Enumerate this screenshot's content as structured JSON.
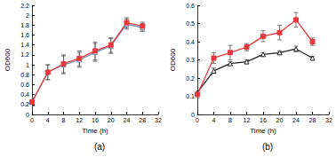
{
  "chart_data": [
    {
      "type": "line",
      "title": "(a)",
      "xlabel": "Time (h)",
      "ylabel": "OD600",
      "x": [
        0,
        4,
        8,
        12,
        16,
        20,
        24,
        28
      ],
      "xlim": [
        0,
        32
      ],
      "xticks": [
        0,
        4,
        8,
        12,
        16,
        20,
        24,
        28,
        32
      ],
      "ylim": [
        0,
        2.2
      ],
      "yticks": [
        0,
        0.2,
        0.4,
        0.6,
        0.8,
        1,
        1.2,
        1.4,
        1.6,
        1.8,
        2,
        2.2
      ],
      "grid": false,
      "series": [
        {
          "color": "#6f8fb8",
          "marker": "triangle",
          "values": [
            0.25,
            0.85,
            1.0,
            1.1,
            1.25,
            1.38,
            1.82,
            1.75
          ],
          "errors": [
            0.08,
            0.15,
            0.18,
            0.15,
            0.18,
            0.15,
            0.1,
            0.08
          ]
        },
        {
          "color": "#e8383d",
          "marker": "square",
          "values": [
            0.25,
            0.85,
            1.02,
            1.13,
            1.28,
            1.4,
            1.85,
            1.78
          ],
          "errors": [
            0.08,
            0.15,
            0.18,
            0.15,
            0.18,
            0.15,
            0.1,
            0.08
          ]
        }
      ]
    },
    {
      "type": "line",
      "title": "(b)",
      "xlabel": "Time (h)",
      "ylabel": "OD600",
      "x": [
        0,
        4,
        8,
        12,
        16,
        20,
        24,
        28
      ],
      "xlim": [
        0,
        32
      ],
      "xticks": [
        0,
        4,
        8,
        12,
        16,
        20,
        24,
        28,
        32
      ],
      "ylim": [
        0,
        0.6
      ],
      "yticks": [
        0,
        0.1,
        0.2,
        0.3,
        0.4,
        0.5,
        0.6
      ],
      "grid": false,
      "series": [
        {
          "color": "#222222",
          "marker": "triangle",
          "values": [
            0.12,
            0.24,
            0.28,
            0.29,
            0.33,
            0.34,
            0.36,
            0.31
          ],
          "errors": [
            0.01,
            0.015,
            0.01,
            0.01,
            0.01,
            0.01,
            0.015,
            0.01
          ]
        },
        {
          "color": "#e8383d",
          "marker": "square",
          "values": [
            0.11,
            0.31,
            0.34,
            0.37,
            0.43,
            0.45,
            0.52,
            0.4
          ],
          "errors": [
            0.02,
            0.03,
            0.04,
            0.02,
            0.03,
            0.04,
            0.04,
            0.02
          ]
        }
      ]
    }
  ]
}
